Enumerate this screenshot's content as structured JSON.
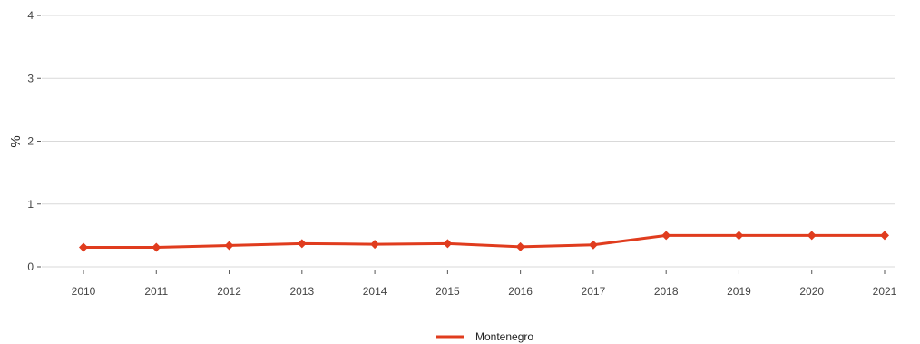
{
  "chart_data": {
    "type": "line",
    "title": "",
    "xlabel": "",
    "ylabel": "%",
    "x": [
      "2010",
      "2011",
      "2012",
      "2013",
      "2014",
      "2015",
      "2016",
      "2017",
      "2018",
      "2019",
      "2020",
      "2021"
    ],
    "series": [
      {
        "name": "Montenegro",
        "values": [
          0.31,
          0.31,
          0.34,
          0.37,
          0.36,
          0.37,
          0.32,
          0.35,
          0.5,
          0.5,
          0.5,
          0.5
        ]
      }
    ],
    "ylim": [
      0,
      4
    ],
    "yticks": [
      "0",
      "1",
      "2",
      "3",
      "4"
    ],
    "grid": true,
    "legend_position": "bottom",
    "series_color": "#e03c1e"
  }
}
